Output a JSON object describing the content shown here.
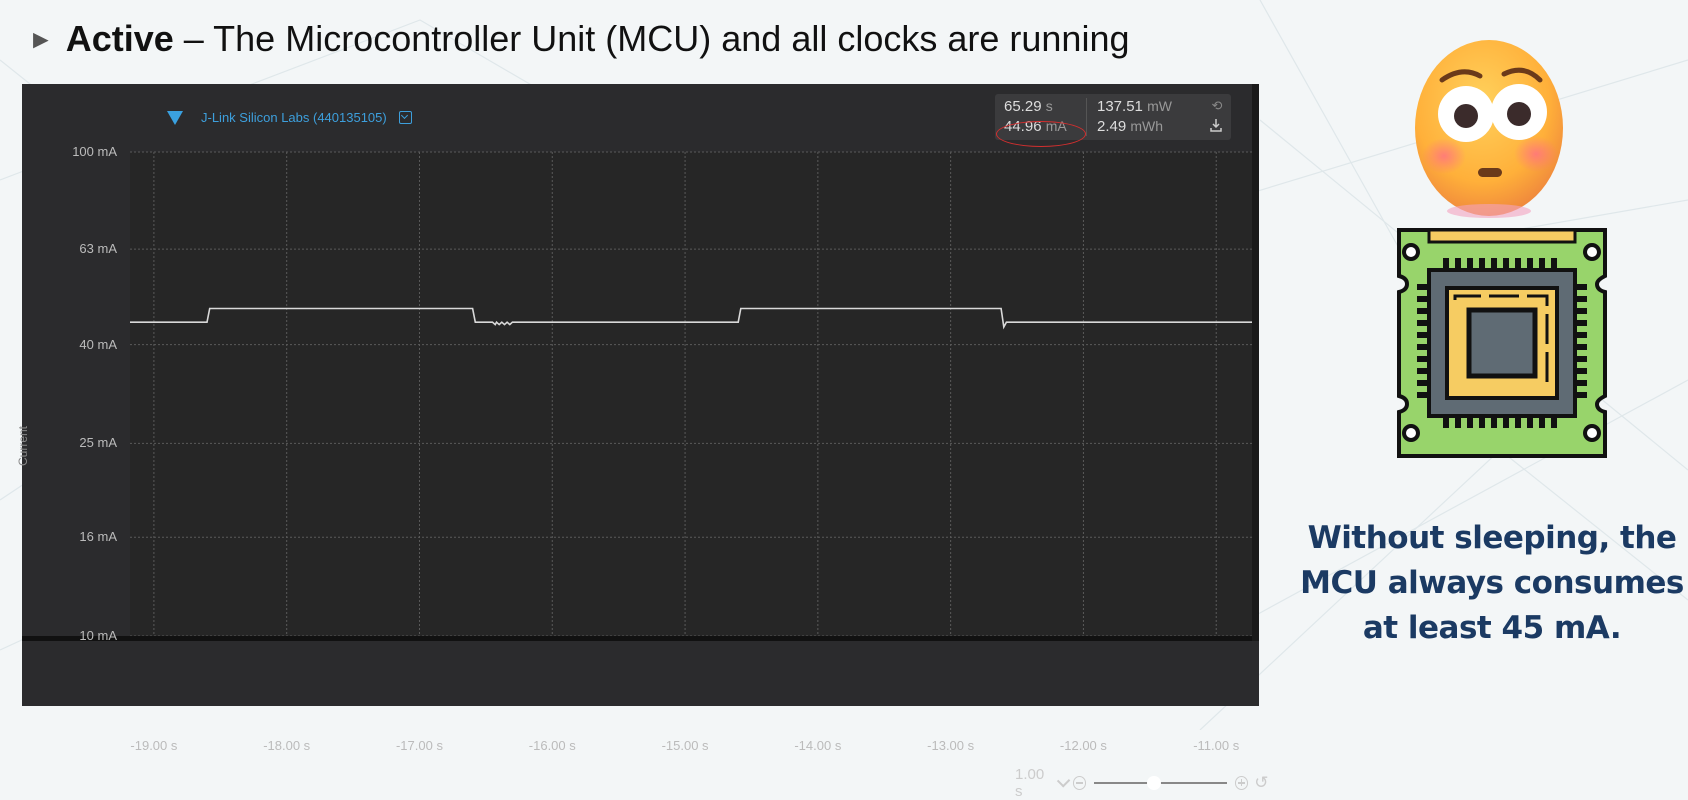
{
  "slide": {
    "title_bold": "Active",
    "title_rest": " – The Microcontroller Unit (MCU) and all clocks are running",
    "caption_lines": [
      "Without sleeping, the",
      "MCU always consumes",
      "at least 45 mA."
    ]
  },
  "profiler": {
    "device": "J-Link Silicon Labs (440135105)",
    "stats": {
      "time": "65.29",
      "time_unit": "s",
      "current": "44.96",
      "current_unit": "mA",
      "power": "137.51",
      "power_unit": "mW",
      "energy": "2.49",
      "energy_unit": "mWh"
    },
    "y_axis_title": "Current",
    "zoom_value": "1.00 s",
    "zoom_level": 0.45
  },
  "colors": {
    "panel_bg": "#2b2b2d",
    "trace": "#d9d9d9",
    "accent": "#3aa1e0",
    "highlight": "#d32f2f",
    "caption": "#1b3a63"
  },
  "chart_data": {
    "type": "line",
    "xlabel": "",
    "ylabel": "Current",
    "x_ticks": [
      "-19.00 s",
      "-18.00 s",
      "-17.00 s",
      "-16.00 s",
      "-15.00 s",
      "-14.00 s",
      "-13.00 s",
      "-12.00 s",
      "-11.00 s"
    ],
    "y_ticks": [
      "100 mA",
      "63 mA",
      "40 mA",
      "25 mA",
      "16 mA",
      "10 mA"
    ],
    "y_scale": "log",
    "ylim": [
      10,
      100
    ],
    "xlim": [
      -19.18,
      -10.58
    ],
    "grid": true,
    "series": [
      {
        "x": [
          -19.18,
          -18.6,
          -18.58,
          -16.6,
          -16.58,
          -16.45,
          -16.43,
          -16.42,
          -16.4,
          -16.38,
          -16.36,
          -16.34,
          -16.32,
          -16.3,
          -14.6,
          -14.58,
          -12.62,
          -12.6,
          -12.58,
          -10.62,
          -10.6,
          -10.58
        ],
        "y": [
          44.5,
          44.5,
          47.5,
          47.5,
          44.5,
          44.5,
          44.0,
          44.5,
          44.0,
          44.5,
          44.0,
          44.5,
          44.0,
          44.5,
          44.5,
          47.5,
          47.5,
          43.5,
          44.5,
          44.5,
          47.5,
          47.5
        ]
      }
    ]
  }
}
